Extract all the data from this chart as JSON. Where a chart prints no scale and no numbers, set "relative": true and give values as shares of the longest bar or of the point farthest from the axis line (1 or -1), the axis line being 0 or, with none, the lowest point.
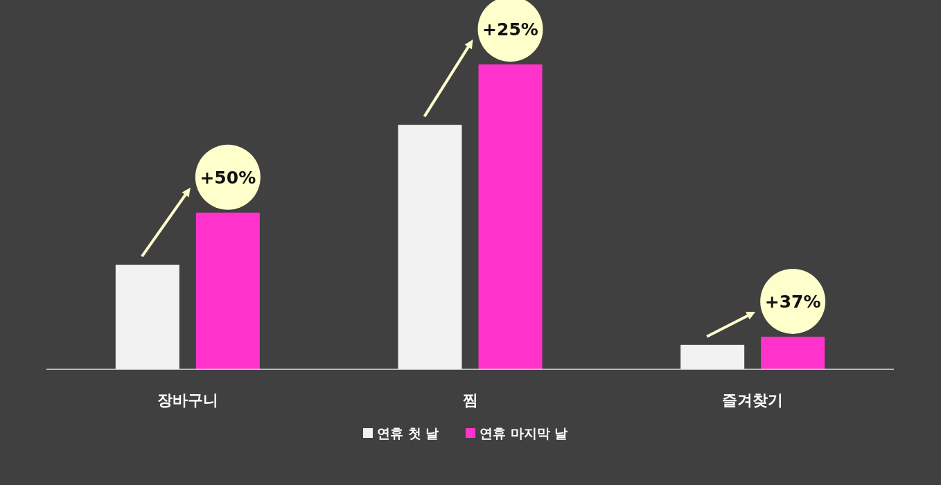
{
  "chart_data": {
    "type": "bar",
    "relative": true,
    "categories": [
      "장바구니",
      "찜",
      "즐겨찾기"
    ],
    "series": [
      {
        "name": "연휴 첫 날",
        "color": "#f2f2f2",
        "values": [
          0.343,
          0.802,
          0.08
        ]
      },
      {
        "name": "연휴 마지막 날",
        "color": "#ff33cc",
        "values": [
          0.514,
          1,
          0.107
        ]
      }
    ],
    "annotations": [
      "+50%",
      "+25%",
      "+37%"
    ],
    "legend": "bottom"
  }
}
